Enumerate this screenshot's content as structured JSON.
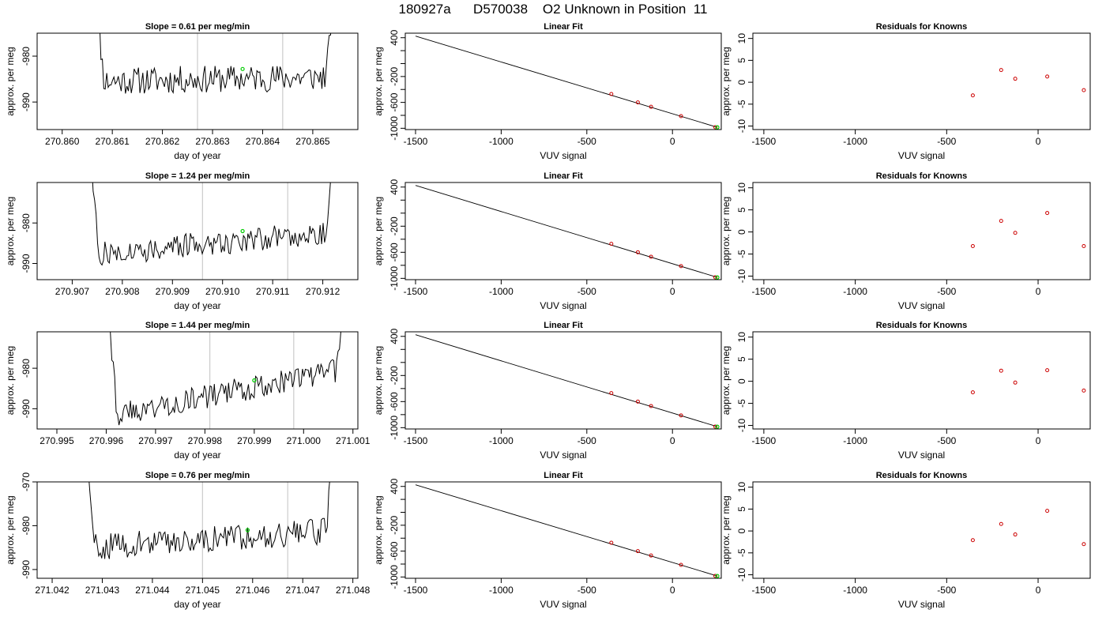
{
  "page_title": "180927a      D570038    O2 Unknown in Position  11",
  "colors": {
    "trace": "#000000",
    "marker_green": "#00cc00",
    "marker_red": "#cc0000",
    "vline": "#cccccc"
  },
  "chart_data": [
    {
      "type": "line",
      "title": "Slope =  0.61  per meg/min",
      "xlabel": "day of year",
      "ylabel": "approx. per meg",
      "xlim": [
        270.8595,
        270.8659
      ],
      "ylim": [
        -996,
        -975
      ],
      "xticks": [
        270.86,
        270.861,
        270.862,
        270.863,
        270.864,
        270.865
      ],
      "xtick_labels": [
        "270.860",
        "270.861",
        "270.862",
        "270.863",
        "270.864",
        "270.865"
      ],
      "yticks": [
        -990,
        -980
      ],
      "ytick_labels": [
        "-990",
        "-980"
      ],
      "x_start": 270.8606,
      "x_end": 270.8655,
      "segment_start": 270.8627,
      "segment_end": 270.8644,
      "baseline_start": -985.5,
      "baseline_end": -984.5,
      "green_point": {
        "x": 270.8636,
        "y": -982.8
      },
      "verticals": [
        270.8627,
        270.8644
      ],
      "seed": 11
    },
    {
      "type": "scatter",
      "title": "Linear Fit",
      "xlabel": "VUV signal",
      "ylabel": "approx. per meg",
      "xlim": [
        -1560,
        285
      ],
      "ylim": [
        -1020,
        470
      ],
      "xticks": [
        -1500,
        -1000,
        -500,
        0
      ],
      "xtick_labels": [
        "-1500",
        "-1000",
        "-500",
        "0"
      ],
      "yticks": [
        -1000,
        -800,
        -600,
        -400,
        -200,
        0,
        200,
        400
      ],
      "ytick_labels": [
        "-1000",
        "",
        "-600",
        "",
        "-200",
        "",
        "",
        "400"
      ],
      "fit_line": [
        [
          -1500,
          425
        ],
        [
          262,
          -985
        ]
      ],
      "knowns": [
        {
          "x": -357,
          "y": -470
        },
        {
          "x": -202,
          "y": -600
        },
        {
          "x": -125,
          "y": -668
        },
        {
          "x": 50,
          "y": -812
        },
        {
          "x": 250,
          "y": -983
        }
      ],
      "unknown": {
        "x": 262,
        "y": -985
      }
    },
    {
      "type": "scatter",
      "title": "Residuals for Knowns",
      "xlabel": "VUV signal",
      "ylabel": "approx. per meg",
      "xlim": [
        -1560,
        285
      ],
      "ylim": [
        -10.8,
        11.2
      ],
      "xticks": [
        -1500,
        -1000,
        -500,
        0
      ],
      "xtick_labels": [
        "-1500",
        "-1000",
        "-500",
        "0"
      ],
      "yticks": [
        -10,
        -5,
        0,
        5,
        10
      ],
      "ytick_labels": [
        "-10",
        "-5",
        "0",
        "5",
        "10"
      ],
      "points": [
        {
          "x": -357,
          "y": -3.0
        },
        {
          "x": -202,
          "y": 2.8
        },
        {
          "x": -125,
          "y": 0.8
        },
        {
          "x": 50,
          "y": 1.3
        },
        {
          "x": 250,
          "y": -1.8
        }
      ]
    },
    {
      "type": "line",
      "title": "Slope =  1.24  per meg/min",
      "xlabel": "day of year",
      "ylabel": "approx. per meg",
      "xlim": [
        270.9063,
        270.9127
      ],
      "ylim": [
        -994,
        -970
      ],
      "xticks": [
        270.907,
        270.908,
        270.909,
        270.91,
        270.911,
        270.912
      ],
      "xtick_labels": [
        "270.907",
        "270.908",
        "270.909",
        "270.910",
        "270.911",
        "270.912"
      ],
      "yticks": [
        -990,
        -980
      ],
      "ytick_labels": [
        "-990",
        "-980"
      ],
      "x_start": 270.9073,
      "x_end": 270.9123,
      "segment_start": 270.9096,
      "segment_end": 270.9113,
      "baseline_start": -988,
      "baseline_end": -982,
      "green_point": {
        "x": 270.9104,
        "y": -982.0
      },
      "verticals": [
        270.9096,
        270.9113
      ],
      "seed": 27
    },
    {
      "type": "scatter",
      "title": "Linear Fit",
      "xlabel": "VUV signal",
      "ylabel": "approx. per meg",
      "xlim": [
        -1560,
        285
      ],
      "ylim": [
        -1020,
        470
      ],
      "xticks": [
        -1500,
        -1000,
        -500,
        0
      ],
      "xtick_labels": [
        "-1500",
        "-1000",
        "-500",
        "0"
      ],
      "yticks": [
        -1000,
        -800,
        -600,
        -400,
        -200,
        0,
        200,
        400
      ],
      "ytick_labels": [
        "-1000",
        "",
        "-600",
        "",
        "-200",
        "",
        "",
        "400"
      ],
      "fit_line": [
        [
          -1500,
          425
        ],
        [
          262,
          -985
        ]
      ],
      "knowns": [
        {
          "x": -357,
          "y": -470
        },
        {
          "x": -202,
          "y": -600
        },
        {
          "x": -125,
          "y": -668
        },
        {
          "x": 50,
          "y": -812
        },
        {
          "x": 250,
          "y": -983
        }
      ],
      "unknown": {
        "x": 262,
        "y": -985
      }
    },
    {
      "type": "scatter",
      "title": "Residuals for Knowns",
      "xlabel": "VUV signal",
      "ylabel": "approx. per meg",
      "xlim": [
        -1560,
        285
      ],
      "ylim": [
        -10.8,
        11.2
      ],
      "xticks": [
        -1500,
        -1000,
        -500,
        0
      ],
      "xtick_labels": [
        "-1500",
        "-1000",
        "-500",
        "0"
      ],
      "yticks": [
        -10,
        -5,
        0,
        5,
        10
      ],
      "ytick_labels": [
        "-10",
        "-5",
        "0",
        "5",
        "10"
      ],
      "points": [
        {
          "x": -357,
          "y": -3.2
        },
        {
          "x": -202,
          "y": 2.5
        },
        {
          "x": -125,
          "y": -0.2
        },
        {
          "x": 50,
          "y": 4.3
        },
        {
          "x": 250,
          "y": -3.2
        }
      ]
    },
    {
      "type": "line",
      "title": "Slope =  1.44  per meg/min",
      "xlabel": "day of year",
      "ylabel": "approx. per meg",
      "xlim": [
        270.9946,
        271.0011
      ],
      "ylim": [
        -995,
        -971
      ],
      "xticks": [
        270.995,
        270.996,
        270.997,
        270.998,
        270.999,
        271.0,
        271.001
      ],
      "xtick_labels": [
        "270.995",
        "270.996",
        "270.997",
        "270.998",
        "270.999",
        "271.000",
        "271.001"
      ],
      "yticks": [
        -990,
        -980
      ],
      "ytick_labels": [
        "-990",
        "-980"
      ],
      "x_start": 270.996,
      "x_end": 271.0009,
      "segment_start": 270.9981,
      "segment_end": 270.9998,
      "baseline_start": -992,
      "baseline_end": -980,
      "green_point": {
        "x": 270.999,
        "y": -983.0
      },
      "verticals": [
        270.9981,
        270.9998
      ],
      "seed": 43
    },
    {
      "type": "scatter",
      "title": "Linear Fit",
      "xlabel": "VUV signal",
      "ylabel": "approx. per meg",
      "xlim": [
        -1560,
        285
      ],
      "ylim": [
        -1020,
        470
      ],
      "xticks": [
        -1500,
        -1000,
        -500,
        0
      ],
      "xtick_labels": [
        "-1500",
        "-1000",
        "-500",
        "0"
      ],
      "yticks": [
        -1000,
        -800,
        -600,
        -400,
        -200,
        0,
        200,
        400
      ],
      "ytick_labels": [
        "-1000",
        "",
        "-600",
        "",
        "-200",
        "",
        "",
        "400"
      ],
      "fit_line": [
        [
          -1500,
          425
        ],
        [
          262,
          -985
        ]
      ],
      "knowns": [
        {
          "x": -357,
          "y": -470
        },
        {
          "x": -202,
          "y": -600
        },
        {
          "x": -125,
          "y": -668
        },
        {
          "x": 50,
          "y": -812
        },
        {
          "x": 250,
          "y": -983
        }
      ],
      "unknown": {
        "x": 262,
        "y": -985
      }
    },
    {
      "type": "scatter",
      "title": "Residuals for Knowns",
      "xlabel": "VUV signal",
      "ylabel": "approx. per meg",
      "xlim": [
        -1560,
        285
      ],
      "ylim": [
        -10.8,
        11.2
      ],
      "xticks": [
        -1500,
        -1000,
        -500,
        0
      ],
      "xtick_labels": [
        "-1500",
        "-1000",
        "-500",
        "0"
      ],
      "yticks": [
        -10,
        -5,
        0,
        5,
        10
      ],
      "ytick_labels": [
        "-10",
        "-5",
        "0",
        "5",
        "10"
      ],
      "points": [
        {
          "x": -357,
          "y": -2.5
        },
        {
          "x": -202,
          "y": 2.4
        },
        {
          "x": -125,
          "y": -0.3
        },
        {
          "x": 50,
          "y": 2.5
        },
        {
          "x": 250,
          "y": -2.1
        }
      ]
    },
    {
      "type": "line",
      "title": "Slope =  0.76  per meg/min",
      "xlabel": "day of year",
      "ylabel": "approx. per meg",
      "xlim": [
        271.0417,
        271.0481
      ],
      "ylim": [
        -992,
        -970
      ],
      "xticks": [
        271.042,
        271.043,
        271.044,
        271.045,
        271.046,
        271.047,
        271.048
      ],
      "xtick_labels": [
        "271.042",
        "271.043",
        "271.044",
        "271.045",
        "271.046",
        "271.047",
        "271.048"
      ],
      "yticks": [
        -990,
        -980,
        -970
      ],
      "ytick_labels": [
        "-990",
        "-980",
        "-970"
      ],
      "x_start": 271.0426,
      "x_end": 271.0477,
      "segment_start": 271.045,
      "segment_end": 271.0467,
      "baseline_start": -985,
      "baseline_end": -981,
      "green_point": {
        "x": 271.0459,
        "y": -981.0
      },
      "verticals": [
        271.045,
        271.0467
      ],
      "seed": 59
    },
    {
      "type": "scatter",
      "title": "Linear Fit",
      "xlabel": "VUV signal",
      "ylabel": "approx. per meg",
      "xlim": [
        -1560,
        285
      ],
      "ylim": [
        -1020,
        470
      ],
      "xticks": [
        -1500,
        -1000,
        -500,
        0
      ],
      "xtick_labels": [
        "-1500",
        "-1000",
        "-500",
        "0"
      ],
      "yticks": [
        -1000,
        -800,
        -600,
        -400,
        -200,
        0,
        200,
        400
      ],
      "ytick_labels": [
        "-1000",
        "",
        "-600",
        "",
        "-200",
        "",
        "",
        "400"
      ],
      "fit_line": [
        [
          -1500,
          425
        ],
        [
          262,
          -985
        ]
      ],
      "knowns": [
        {
          "x": -357,
          "y": -470
        },
        {
          "x": -202,
          "y": -600
        },
        {
          "x": -125,
          "y": -668
        },
        {
          "x": 50,
          "y": -812
        },
        {
          "x": 250,
          "y": -983
        }
      ],
      "unknown": {
        "x": 262,
        "y": -985
      }
    },
    {
      "type": "scatter",
      "title": "Residuals for Knowns",
      "xlabel": "VUV signal",
      "ylabel": "approx. per meg",
      "xlim": [
        -1560,
        285
      ],
      "ylim": [
        -10.8,
        11.2
      ],
      "xticks": [
        -1500,
        -1000,
        -500,
        0
      ],
      "xtick_labels": [
        "-1500",
        "-1000",
        "-500",
        "0"
      ],
      "yticks": [
        -10,
        -5,
        0,
        5,
        10
      ],
      "ytick_labels": [
        "-10",
        "-5",
        "0",
        "5",
        "10"
      ],
      "points": [
        {
          "x": -357,
          "y": -2.1
        },
        {
          "x": -202,
          "y": 1.6
        },
        {
          "x": -125,
          "y": -0.8
        },
        {
          "x": 50,
          "y": 4.6
        },
        {
          "x": 250,
          "y": -3.0
        }
      ]
    }
  ]
}
